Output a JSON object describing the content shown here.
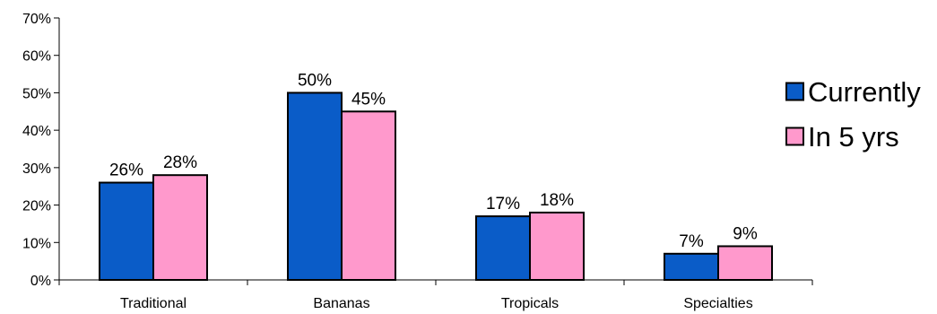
{
  "chart_data": {
    "type": "bar",
    "title": "",
    "xlabel": "",
    "ylabel": "",
    "categories": [
      "Traditional",
      "Bananas",
      "Tropicals",
      "Specialties"
    ],
    "series": [
      {
        "name": "Currently",
        "values": [
          26,
          50,
          17,
          7
        ],
        "labels": [
          "26%",
          "50%",
          "17%",
          "7%"
        ],
        "color": "#0A5CC8"
      },
      {
        "name": "In 5 yrs",
        "values": [
          28,
          45,
          18,
          9
        ],
        "labels": [
          "28%",
          "45%",
          "18%",
          "9%"
        ],
        "color": "#FF99CC"
      }
    ],
    "ylim": [
      0,
      70
    ],
    "yticks": [
      0,
      10,
      20,
      30,
      40,
      50,
      60,
      70
    ],
    "ytick_labels": [
      "0%",
      "10%",
      "20%",
      "30%",
      "40%",
      "50%",
      "60%",
      "70%"
    ],
    "grid": false,
    "legend_position": "right"
  }
}
